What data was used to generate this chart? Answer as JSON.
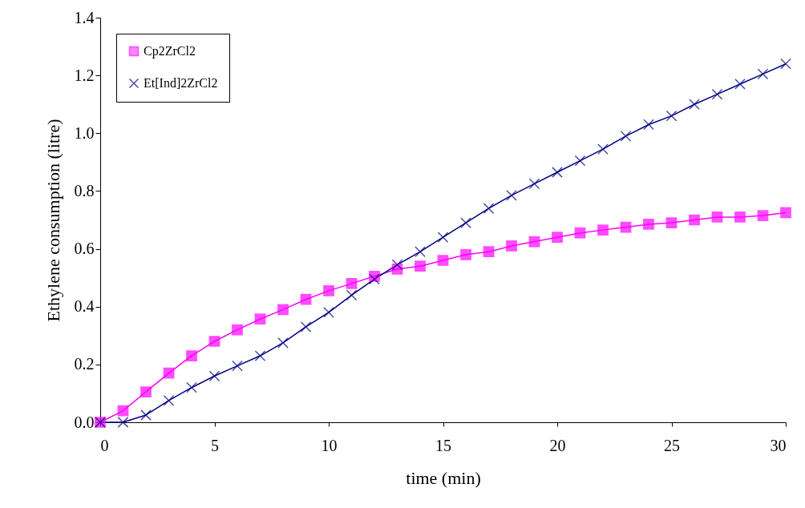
{
  "chart_data": {
    "type": "line",
    "xlabel": "time  (min)",
    "ylabel": "Ethylene consumption    (litre)",
    "x": [
      0,
      1,
      2,
      3,
      4,
      5,
      6,
      7,
      8,
      9,
      10,
      11,
      12,
      13,
      14,
      15,
      16,
      17,
      18,
      19,
      20,
      21,
      22,
      23,
      24,
      25,
      26,
      27,
      28,
      29,
      30
    ],
    "xlim": [
      0,
      30
    ],
    "xticks": [
      0,
      5,
      10,
      15,
      20,
      25,
      30
    ],
    "ylim": [
      0,
      1.4
    ],
    "yticks": [
      {
        "value": 0,
        "label": "0.0"
      },
      0.2,
      0.4,
      0.6,
      0.8,
      {
        "value": 1,
        "label": "1.0"
      },
      1.2,
      1.4
    ],
    "grid": false,
    "legend": "top left",
    "line_style": "solid",
    "series": [
      {
        "name": "Cp2ZrCl2",
        "color": "#ff00ff",
        "marker": "square",
        "values": [
          0,
          0.04,
          0.105,
          0.17,
          0.23,
          0.28,
          0.32,
          0.357,
          0.39,
          0.425,
          0.455,
          0.48,
          0.505,
          0.53,
          0.54,
          0.56,
          0.58,
          0.59,
          0.61,
          0.625,
          0.64,
          0.655,
          0.665,
          0.675,
          0.685,
          0.69,
          0.7,
          0.71,
          0.71,
          0.715,
          0.725
        ]
      },
      {
        "name": "Et[Ind]2ZrCl2",
        "color": "#000080",
        "marker": "cross",
        "values": [
          0,
          0,
          0.025,
          0.075,
          0.12,
          0.16,
          0.195,
          0.23,
          0.275,
          0.33,
          0.38,
          0.44,
          0.495,
          0.545,
          0.59,
          0.64,
          0.69,
          0.74,
          0.785,
          0.825,
          0.865,
          0.905,
          0.945,
          0.99,
          1.03,
          1.06,
          1.1,
          1.135,
          1.17,
          1.205,
          1.24
        ]
      }
    ]
  }
}
